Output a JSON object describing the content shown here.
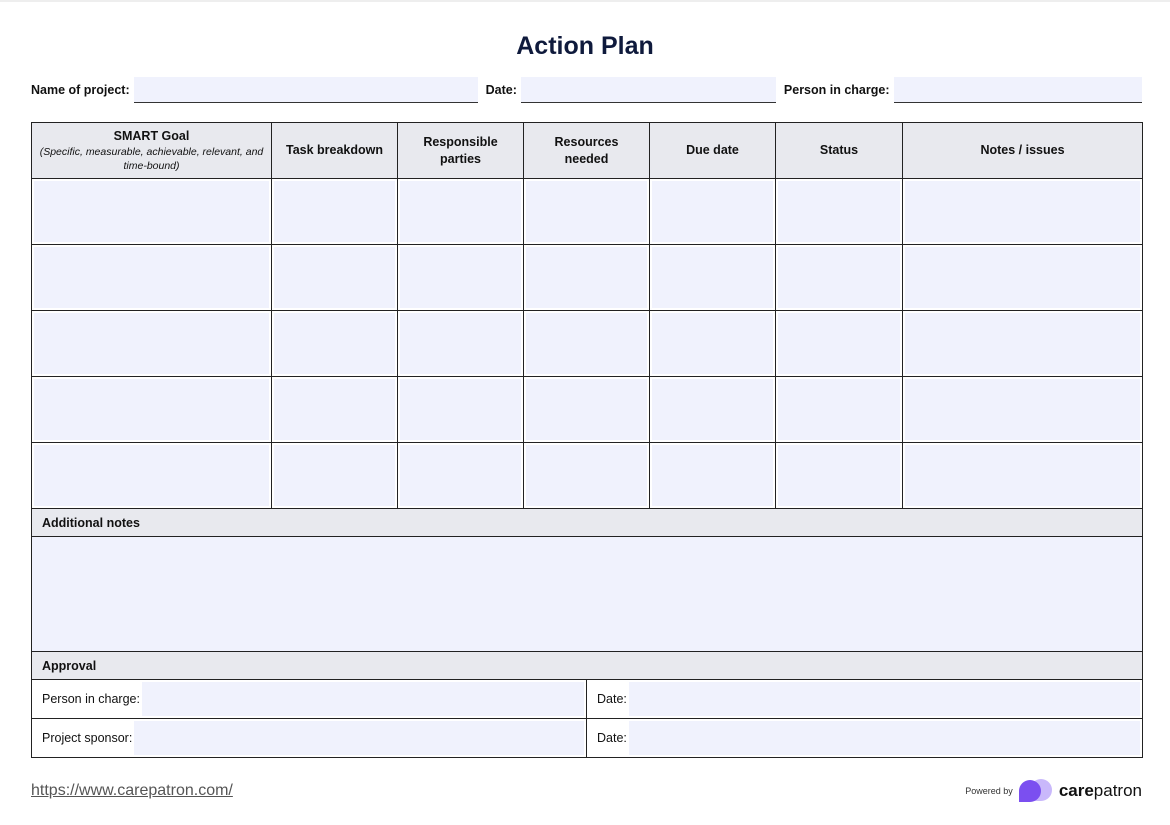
{
  "title": "Action Plan",
  "fields": {
    "project_label": "Name of project:",
    "date_label": "Date:",
    "person_label": "Person in charge:"
  },
  "table": {
    "headers": [
      "SMART Goal",
      "Task breakdown",
      "Responsible parties",
      "Resources needed",
      "Due date",
      "Status",
      "Notes / issues"
    ],
    "smart_sub": "(Specific, measurable, achievable, relevant, and time-bound)",
    "row_count": 5
  },
  "additional_notes": {
    "label": "Additional notes"
  },
  "approval": {
    "label": "Approval",
    "person_label": "Person in charge:",
    "sponsor_label": "Project sponsor:",
    "date_label": "Date:"
  },
  "footer": {
    "url": "https://www.carepatron.com/",
    "powered_by": "Powered by",
    "brand": "carepatron",
    "brand_bold": "care",
    "brand_rest": "patron"
  },
  "colors": {
    "field_fill": "#f0f2fd",
    "header_fill": "#e8e9ee",
    "title": "#0f1a3c",
    "brand_purple": "#7b4ff0"
  }
}
